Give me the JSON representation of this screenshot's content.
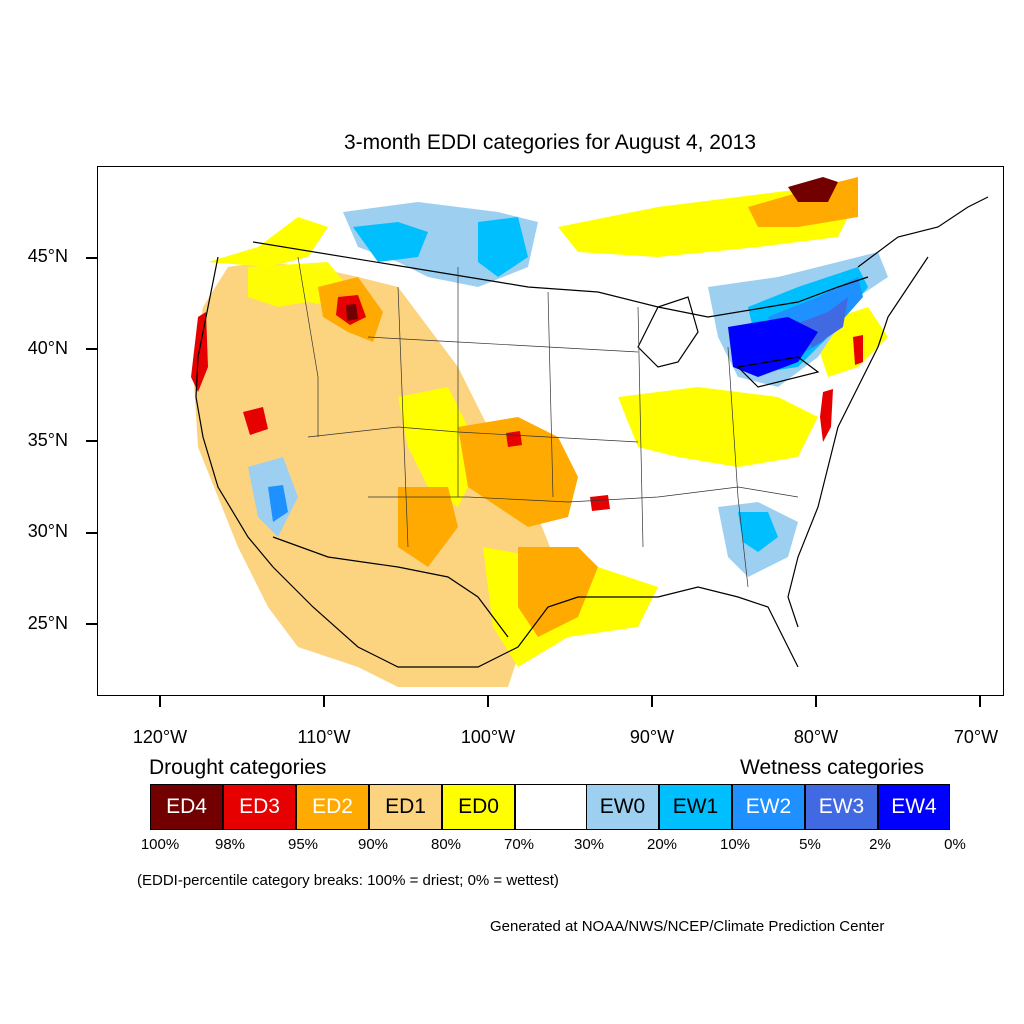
{
  "title": "3-month EDDI categories for August 4, 2013",
  "lat_labels": [
    "45°N",
    "40°N",
    "35°N",
    "30°N",
    "25°N"
  ],
  "lon_labels": [
    "120°W",
    "110°W",
    "100°W",
    "90°W",
    "80°W",
    "70°W"
  ],
  "legend": {
    "drought_heading": "Drought categories",
    "wetness_heading": "Wetness categories",
    "categories": [
      {
        "label": "ED4",
        "color": "#730000",
        "text_color": "#ffffff"
      },
      {
        "label": "ED3",
        "color": "#e60000",
        "text_color": "#ffffff"
      },
      {
        "label": "ED2",
        "color": "#ffaa00",
        "text_color": "#ffffff"
      },
      {
        "label": "ED1",
        "color": "#fcd37f",
        "text_color": "#000000"
      },
      {
        "label": "ED0",
        "color": "#ffff00",
        "text_color": "#000000"
      },
      {
        "label": "",
        "color": "#ffffff",
        "text_color": "#000000"
      },
      {
        "label": "EW0",
        "color": "#9dd0f0",
        "text_color": "#000000"
      },
      {
        "label": "EW1",
        "color": "#00bfff",
        "text_color": "#000000"
      },
      {
        "label": "EW2",
        "color": "#1e90ff",
        "text_color": "#ffffff"
      },
      {
        "label": "EW3",
        "color": "#4169e1",
        "text_color": "#ffffff"
      },
      {
        "label": "EW4",
        "color": "#0000ff",
        "text_color": "#ffffff"
      }
    ],
    "percentiles": [
      "100%",
      "98%",
      "95%",
      "90%",
      "80%",
      "70%",
      "30%",
      "20%",
      "10%",
      "5%",
      "2%",
      "0%"
    ]
  },
  "note": "(EDDI-percentile category breaks: 100% = driest; 0% = wettest)",
  "credit": "Generated at NOAA/NWS/NCEP/Climate Prediction Center"
}
